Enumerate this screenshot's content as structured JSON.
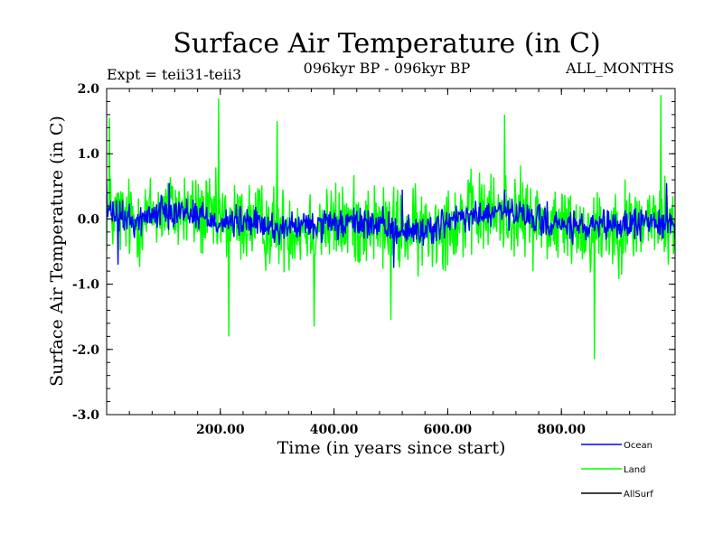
{
  "chart_data": {
    "type": "line",
    "title": "Surface Air Temperature (in C)",
    "subtitle_left": "Expt = teii31-teii3",
    "subtitle_center": "096kyr BP - 096kyr BP",
    "subtitle_right": "ALL_MONTHS",
    "xlabel": "Time (in years since start)",
    "ylabel": "Surface Air Temperature (in C)",
    "xlim": [
      0,
      1000
    ],
    "ylim": [
      -3.0,
      2.0
    ],
    "xticks": [
      200,
      400,
      600,
      800
    ],
    "xtick_labels": [
      "200.00",
      "400.00",
      "600.00",
      "800.00"
    ],
    "yticks": [
      2.0,
      1.0,
      0.0,
      -1.0,
      -2.0,
      -3.0
    ],
    "ytick_labels": [
      "2.0",
      "1.0",
      "0.0",
      "-1.0",
      "-2.0",
      "-3.0"
    ],
    "grid": false,
    "legend_position": "bottom-right",
    "series": [
      {
        "name": "Ocean",
        "color": "#0000ff",
        "noise_amplitude": 0.35,
        "peaks": [
          {
            "x": 0,
            "y": 0.6
          },
          {
            "x": 110,
            "y": 0.55
          },
          {
            "x": 520,
            "y": 0.45
          },
          {
            "x": 20,
            "y": -0.7
          },
          {
            "x": 505,
            "y": -0.75
          },
          {
            "x": 700,
            "y": 0.45
          },
          {
            "x": 985,
            "y": 0.55
          }
        ],
        "x": [
          0,
          50,
          100,
          150,
          200,
          250,
          300,
          350,
          400,
          450,
          500,
          550,
          600,
          650,
          700,
          750,
          800,
          850,
          900,
          950,
          1000
        ],
        "y": [
          0.1,
          -0.05,
          0.15,
          0.1,
          -0.05,
          -0.05,
          -0.15,
          -0.1,
          -0.1,
          -0.05,
          -0.15,
          -0.2,
          -0.05,
          0.05,
          0.1,
          0.0,
          -0.1,
          -0.15,
          -0.1,
          -0.05,
          -0.05
        ]
      },
      {
        "name": "Land",
        "color": "#00ff00",
        "noise_amplitude": 0.95,
        "peaks": [
          {
            "x": 197,
            "y": 1.85
          },
          {
            "x": 858,
            "y": -2.15
          },
          {
            "x": 975,
            "y": 1.9
          },
          {
            "x": 215,
            "y": -1.8
          },
          {
            "x": 5,
            "y": 1.55
          },
          {
            "x": 500,
            "y": -1.55
          },
          {
            "x": 300,
            "y": 1.5
          },
          {
            "x": 700,
            "y": 1.6
          },
          {
            "x": 365,
            "y": -1.65
          }
        ],
        "x": [
          0,
          50,
          100,
          150,
          200,
          250,
          300,
          350,
          400,
          450,
          500,
          550,
          600,
          650,
          700,
          750,
          800,
          850,
          900,
          950,
          1000
        ],
        "y": [
          0.1,
          -0.05,
          0.15,
          0.1,
          -0.05,
          -0.05,
          -0.15,
          -0.1,
          -0.1,
          -0.05,
          -0.15,
          -0.2,
          -0.05,
          0.05,
          0.1,
          0.0,
          -0.1,
          -0.15,
          -0.1,
          -0.05,
          -0.05
        ]
      },
      {
        "name": "AllSurf",
        "color": "#000000",
        "noise_amplitude": 0,
        "peaks": [],
        "x": [],
        "y": []
      }
    ]
  }
}
